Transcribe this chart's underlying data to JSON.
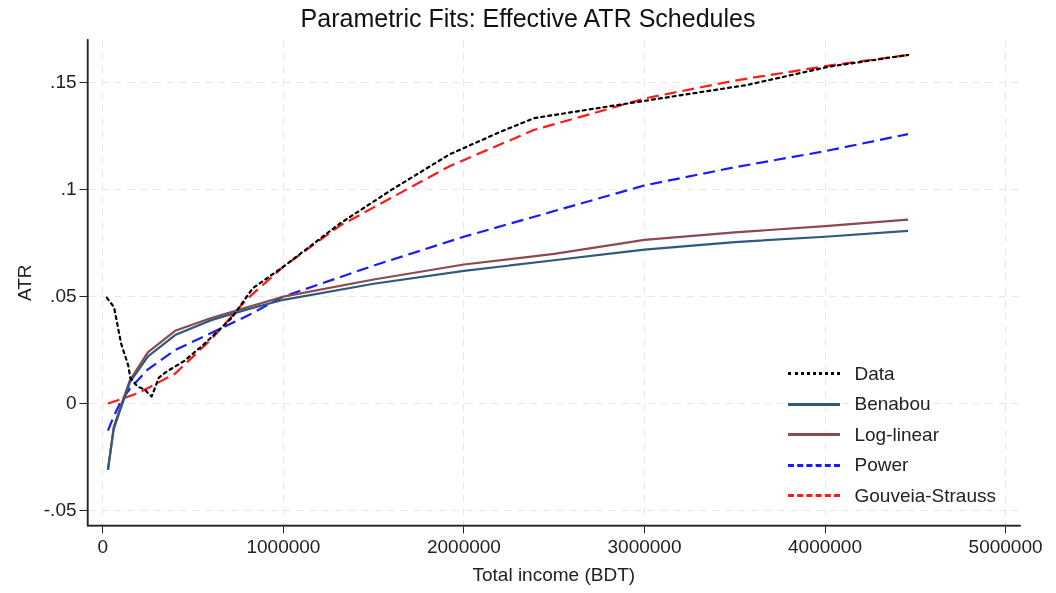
{
  "chart_data": {
    "type": "line",
    "title": "Parametric Fits: Effective ATR Schedules",
    "xlabel": "Total income (BDT)",
    "ylabel": "ATR",
    "xlim": [
      -85000,
      5080000
    ],
    "ylim": [
      -0.057,
      0.17
    ],
    "xticks": [
      0,
      1000000,
      2000000,
      3000000,
      4000000,
      5000000
    ],
    "yticks": [
      {
        "value": -0.05,
        "label": "-.05"
      },
      {
        "value": 0,
        "label": "0"
      },
      {
        "value": 0.05,
        "label": ".05"
      },
      {
        "value": 0.1,
        "label": ".1"
      },
      {
        "value": 0.15,
        "label": ".15"
      }
    ],
    "grid": true,
    "legend": "bottom right",
    "marker": "none",
    "series": [
      {
        "name": "Data",
        "color": "#000000",
        "line_style": "dotted",
        "x": [
          22000,
          62000,
          101000,
          140000,
          152000,
          191000,
          230000,
          270000,
          292000,
          309000,
          354000,
          449000,
          551000,
          713000,
          831000,
          1000000,
          1310000,
          1600000,
          1920000,
          2200000,
          2390000,
          2920000,
          3570000,
          4020000,
          4460000
        ],
        "values": [
          0.0495,
          0.045,
          0.028,
          0.018,
          0.012,
          0.008,
          0.0066,
          0.0033,
          0.008,
          0.012,
          0.015,
          0.0198,
          0.027,
          0.04,
          0.054,
          0.064,
          0.084,
          0.1,
          0.1165,
          0.127,
          0.1335,
          0.1405,
          0.149,
          0.1575,
          0.163
        ]
      },
      {
        "name": "Benabou",
        "color": "#2f5a7e",
        "line_style": "solid",
        "x": [
          28000,
          60000,
          100000,
          150000,
          250000,
          400000,
          600000,
          800000,
          1000000,
          1500000,
          2000000,
          2500000,
          3000000,
          3500000,
          4000000,
          4460000
        ],
        "values": [
          -0.031,
          -0.012,
          -0.002,
          0.01,
          0.022,
          0.032,
          0.039,
          0.044,
          0.0485,
          0.056,
          0.062,
          0.067,
          0.072,
          0.0755,
          0.078,
          0.0807
        ]
      },
      {
        "name": "Log-linear",
        "color": "#8b4a50",
        "line_style": "solid",
        "x": [
          28000,
          60000,
          100000,
          150000,
          250000,
          400000,
          600000,
          800000,
          1000000,
          1500000,
          2000000,
          2500000,
          3000000,
          3500000,
          4000000,
          4460000
        ],
        "values": [
          -0.031,
          -0.011,
          -0.001,
          0.011,
          0.024,
          0.034,
          0.04,
          0.045,
          0.05,
          0.058,
          0.065,
          0.07,
          0.0765,
          0.08,
          0.083,
          0.086
        ]
      },
      {
        "name": "Power",
        "color": "#1a1aff",
        "line_style": "dashed",
        "x": [
          28000,
          60000,
          100000,
          150000,
          250000,
          400000,
          600000,
          800000,
          1000000,
          1500000,
          2000000,
          2500000,
          3000000,
          3500000,
          4000000,
          4460000
        ],
        "values": [
          -0.0127,
          -0.006,
          0.001,
          0.007,
          0.016,
          0.025,
          0.033,
          0.041,
          0.05,
          0.0645,
          0.078,
          0.09,
          0.102,
          0.1105,
          0.118,
          0.126
        ]
      },
      {
        "name": "Gouveia-Strauss",
        "color": "#ff1a1a",
        "line_style": "dashed",
        "x": [
          28000,
          100000,
          200000,
          400000,
          600000,
          800000,
          1000000,
          1310000,
          1920000,
          2390000,
          3020000,
          3500000,
          4020000,
          4460000
        ],
        "values": [
          0,
          0.002,
          0.005,
          0.014,
          0.03,
          0.049,
          0.064,
          0.083,
          0.111,
          0.128,
          0.143,
          0.151,
          0.158,
          0.163
        ]
      }
    ]
  }
}
